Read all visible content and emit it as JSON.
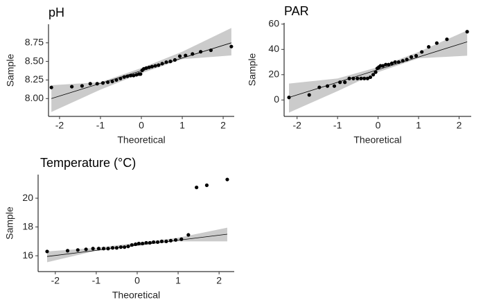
{
  "chart_data": [
    {
      "type": "qq",
      "title": "pH",
      "xlabel": "Theoretical",
      "ylabel": "Sample",
      "color": "#000000",
      "band_color": "#bebebe",
      "x": [
        -2.2,
        -1.7,
        -1.45,
        -1.25,
        -1.08,
        -0.94,
        -0.82,
        -0.71,
        -0.61,
        -0.51,
        -0.42,
        -0.34,
        -0.26,
        -0.19,
        -0.12,
        -0.06,
        -0.02,
        0.02,
        0.06,
        0.12,
        0.19,
        0.26,
        0.34,
        0.42,
        0.51,
        0.61,
        0.71,
        0.82,
        0.94,
        1.08,
        1.25,
        1.45,
        1.7,
        2.2
      ],
      "y": [
        8.15,
        8.16,
        8.17,
        8.2,
        8.2,
        8.21,
        8.22,
        8.23,
        8.25,
        8.27,
        8.29,
        8.3,
        8.31,
        8.31,
        8.32,
        8.33,
        8.33,
        8.38,
        8.4,
        8.41,
        8.42,
        8.43,
        8.44,
        8.45,
        8.47,
        8.49,
        8.5,
        8.52,
        8.57,
        8.58,
        8.6,
        8.63,
        8.65,
        8.7
      ],
      "fit": {
        "x": [
          -2.2,
          2.2
        ],
        "y": [
          8.0,
          8.75
        ]
      },
      "band": {
        "x": [
          -2.2,
          -1,
          0,
          1,
          2.2
        ],
        "lower": [
          7.82,
          8.12,
          8.34,
          8.53,
          8.58
        ],
        "upper": [
          8.18,
          8.22,
          8.41,
          8.63,
          8.95
        ]
      },
      "xlim": [
        -2.27,
        2.27
      ],
      "ylim": [
        7.76,
        9.0
      ],
      "xticks": [
        -2,
        -1,
        0,
        1,
        2
      ],
      "yticks": [
        {
          "value": 8,
          "label": "8.00"
        },
        8.25,
        {
          "value": 8.5,
          "label": "8.50"
        },
        8.75
      ]
    },
    {
      "type": "qq",
      "title": "PAR",
      "xlabel": "Theoretical",
      "ylabel": "Sample",
      "color": "#000000",
      "band_color": "#bebebe",
      "x": [
        -2.2,
        -1.7,
        -1.45,
        -1.25,
        -1.08,
        -0.94,
        -0.82,
        -0.71,
        -0.61,
        -0.51,
        -0.42,
        -0.34,
        -0.26,
        -0.19,
        -0.12,
        -0.06,
        -0.02,
        0.02,
        0.06,
        0.12,
        0.19,
        0.26,
        0.34,
        0.42,
        0.51,
        0.61,
        0.71,
        0.82,
        0.94,
        1.08,
        1.25,
        1.45,
        1.7,
        2.2
      ],
      "y": [
        2,
        4,
        10,
        11,
        11,
        14,
        14,
        17,
        17,
        17,
        17,
        17,
        17,
        18,
        20,
        22,
        25,
        26,
        27,
        27,
        28,
        28,
        29,
        30,
        30,
        31,
        32,
        34,
        35,
        38,
        42,
        45,
        48,
        54
      ],
      "fit": {
        "x": [
          -2.2,
          2.2
        ],
        "y": [
          2,
          46
        ]
      },
      "band": {
        "x": [
          -2.2,
          -1,
          0,
          1,
          2.2
        ],
        "lower": [
          -10,
          7,
          22,
          33,
          35
        ],
        "upper": [
          13,
          17,
          26,
          38,
          55
        ]
      },
      "xlim": [
        -2.32,
        2.3
      ],
      "ylim": [
        -13,
        61
      ],
      "xticks": [
        -2,
        -1,
        0,
        1,
        2
      ],
      "yticks": [
        0,
        20,
        40,
        60
      ]
    },
    {
      "type": "qq",
      "title": "Temperature (°C)",
      "xlabel": "Theoretical",
      "ylabel": "Sample",
      "color": "#000000",
      "band_color": "#bebebe",
      "x": [
        -2.2,
        -1.7,
        -1.45,
        -1.25,
        -1.08,
        -0.94,
        -0.82,
        -0.71,
        -0.6,
        -0.5,
        -0.4,
        -0.31,
        -0.22,
        -0.13,
        -0.04,
        0.04,
        0.13,
        0.22,
        0.31,
        0.4,
        0.5,
        0.6,
        0.71,
        0.82,
        0.94,
        1.08,
        1.25,
        1.45,
        1.7,
        2.2
      ],
      "y": [
        16.3,
        16.35,
        16.4,
        16.45,
        16.5,
        16.5,
        16.5,
        16.5,
        16.55,
        16.55,
        16.6,
        16.6,
        16.65,
        16.75,
        16.8,
        16.85,
        16.85,
        16.9,
        16.9,
        16.95,
        16.95,
        17,
        17,
        17.05,
        17.1,
        17.15,
        17.45,
        20.75,
        20.9,
        21.3
      ],
      "fit": {
        "x": [
          -2.2,
          2.2
        ],
        "y": [
          15.95,
          17.5
        ]
      },
      "band": {
        "x": [
          -2.2,
          -1,
          0,
          1,
          2.2
        ],
        "lower": [
          15.55,
          16.35,
          16.78,
          17.0,
          17.0
        ],
        "upper": [
          16.3,
          16.55,
          16.9,
          17.25,
          17.95
        ]
      },
      "xlim": [
        -2.42,
        2.37
      ],
      "ylim": [
        14.9,
        21.64
      ],
      "xticks": [
        -2,
        -1,
        0,
        1,
        2
      ],
      "yticks": [
        16,
        18,
        20
      ]
    }
  ]
}
